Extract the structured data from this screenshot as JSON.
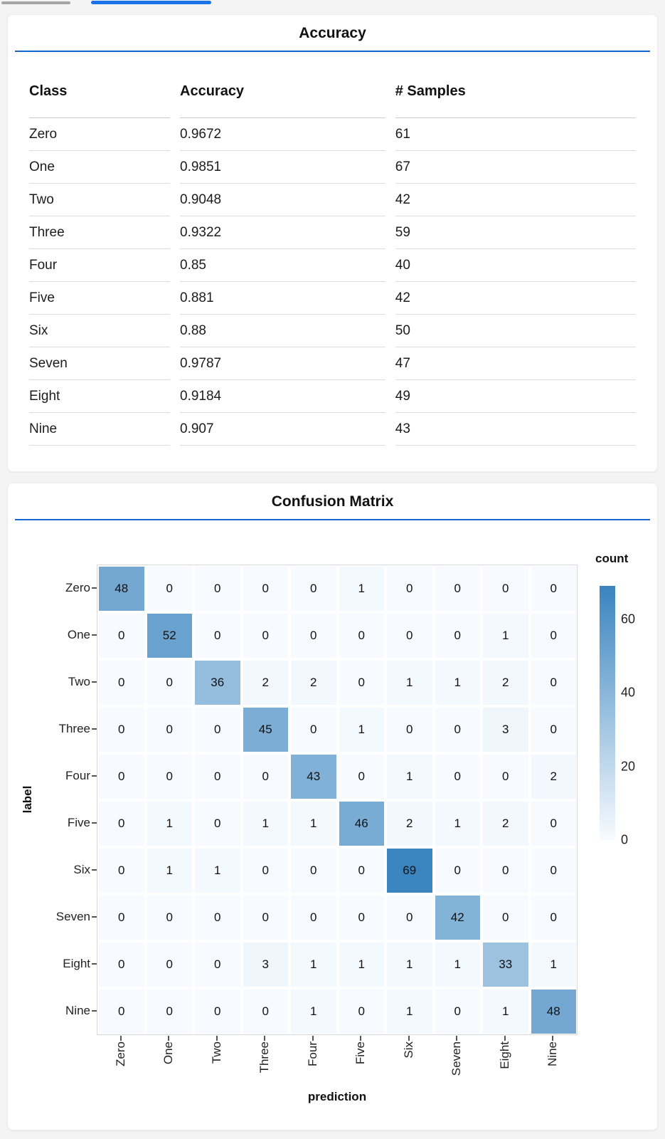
{
  "theme": {
    "background": "#f4f4f5",
    "card_background": "#ffffff",
    "accent_underline": "#1568d3",
    "top_bar_gray": "#a5a5a5",
    "top_bar_blue": "#1a73e8",
    "text_color": "#1c1c1e"
  },
  "chart_data": [
    {
      "type": "table",
      "title": "Accuracy",
      "columns": [
        "Class",
        "Accuracy",
        "# Samples"
      ],
      "rows": [
        [
          "Zero",
          "0.9672",
          "61"
        ],
        [
          "One",
          "0.9851",
          "67"
        ],
        [
          "Two",
          "0.9048",
          "42"
        ],
        [
          "Three",
          "0.9322",
          "59"
        ],
        [
          "Four",
          "0.85",
          "40"
        ],
        [
          "Five",
          "0.881",
          "42"
        ],
        [
          "Six",
          "0.88",
          "50"
        ],
        [
          "Seven",
          "0.9787",
          "47"
        ],
        [
          "Eight",
          "0.9184",
          "49"
        ],
        [
          "Nine",
          "0.907",
          "43"
        ]
      ]
    },
    {
      "type": "heatmap",
      "title": "Confusion Matrix",
      "xlabel": "prediction",
      "ylabel": "label",
      "x_categories": [
        "Zero",
        "One",
        "Two",
        "Three",
        "Four",
        "Five",
        "Six",
        "Seven",
        "Eight",
        "Nine"
      ],
      "y_categories": [
        "Zero",
        "One",
        "Two",
        "Three",
        "Four",
        "Five",
        "Six",
        "Seven",
        "Eight",
        "Nine"
      ],
      "matrix": [
        [
          48,
          0,
          0,
          0,
          0,
          1,
          0,
          0,
          0,
          0
        ],
        [
          0,
          52,
          0,
          0,
          0,
          0,
          0,
          0,
          1,
          0
        ],
        [
          0,
          0,
          36,
          2,
          2,
          0,
          1,
          1,
          2,
          0
        ],
        [
          0,
          0,
          0,
          45,
          0,
          1,
          0,
          0,
          3,
          0
        ],
        [
          0,
          0,
          0,
          0,
          43,
          0,
          1,
          0,
          0,
          2
        ],
        [
          0,
          1,
          0,
          1,
          1,
          46,
          2,
          1,
          2,
          0
        ],
        [
          0,
          1,
          1,
          0,
          0,
          0,
          69,
          0,
          0,
          0
        ],
        [
          0,
          0,
          0,
          0,
          0,
          0,
          0,
          42,
          0,
          0
        ],
        [
          0,
          0,
          0,
          3,
          1,
          1,
          1,
          1,
          33,
          1
        ],
        [
          0,
          0,
          0,
          0,
          1,
          0,
          1,
          0,
          1,
          48
        ]
      ],
      "legend": {
        "title": "count",
        "ticks": [
          60,
          40,
          20,
          0
        ],
        "domain": [
          0,
          69
        ]
      },
      "colors": {
        "min": "#f7fbff",
        "max": "#3a84bf"
      },
      "grid": false,
      "legend_position": "right"
    }
  ]
}
